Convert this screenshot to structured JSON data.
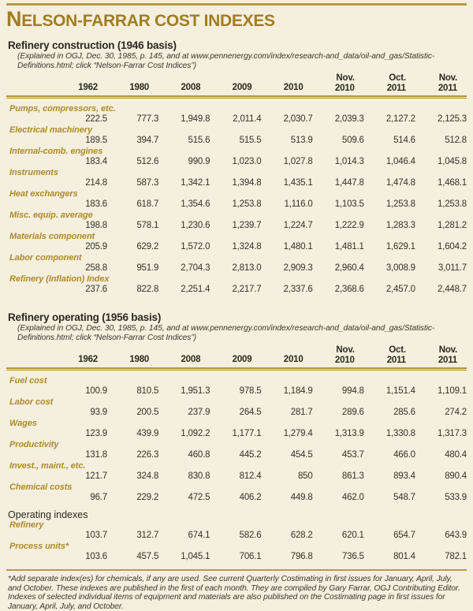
{
  "title": "NELSON-FARRAR COST INDEXES",
  "colors": {
    "background": "#f4efde",
    "accent_gold": "#bd9a43",
    "title_gold": "#a17d1e",
    "label_gold": "#b08a29",
    "text_dark": "#35312a"
  },
  "columns": [
    {
      "line1": "",
      "line2": "1962"
    },
    {
      "line1": "",
      "line2": "1980"
    },
    {
      "line1": "",
      "line2": "2008"
    },
    {
      "line1": "",
      "line2": "2009"
    },
    {
      "line1": "",
      "line2": "2010"
    },
    {
      "line1": "Nov.",
      "line2": "2010"
    },
    {
      "line1": "Oct.",
      "line2": "2011"
    },
    {
      "line1": "Nov.",
      "line2": "2011"
    }
  ],
  "sections": [
    {
      "heading": "Refinery construction (1946 basis)",
      "explanation": [
        "(Explained in OGJ, Dec. 30, 1985, p. 145, and at www.pennenergy.com/index/research-and_data/oil-and_gas/Statistic-",
        "Definitions.html; click “Nelson-Farrar Cost Indices”)"
      ],
      "rows": [
        {
          "label": "Pumps, compressors, etc.",
          "values": [
            "222.5",
            "777.3",
            "1,949.8",
            "2,011.4",
            "2,030.7",
            "2,039.3",
            "2,127.2",
            "2,125.3"
          ]
        },
        {
          "label": "Electrical machinery",
          "values": [
            "189.5",
            "394.7",
            "515.6",
            "515.5",
            "513.9",
            "509.6",
            "514.6",
            "512.8"
          ]
        },
        {
          "label": "Internal-comb. engines",
          "values": [
            "183.4",
            "512.6",
            "990.9",
            "1,023.0",
            "1,027.8",
            "1,014.3",
            "1,046.4",
            "1,045.8"
          ]
        },
        {
          "label": "Instruments",
          "values": [
            "214.8",
            "587.3",
            "1,342.1",
            "1,394.8",
            "1,435.1",
            "1,447.8",
            "1,474.8",
            "1,468.1"
          ]
        },
        {
          "label": "Heat exchangers",
          "values": [
            "183.6",
            "618.7",
            "1,354.6",
            "1,253.8",
            "1,116.0",
            "1,103.5",
            "1,253.8",
            "1,253.8"
          ]
        },
        {
          "label": "Misc. equip. average",
          "values": [
            "198.8",
            "578.1",
            "1,230.6",
            "1,239.7",
            "1,224.7",
            "1,222.9",
            "1,283.3",
            "1,281.2"
          ]
        },
        {
          "label": "Materials component",
          "values": [
            "205.9",
            "629.2",
            "1,572.0",
            "1,324.8",
            "1,480.1",
            "1,481.1",
            "1,629.1",
            "1,604.2"
          ]
        },
        {
          "label": "Labor component",
          "values": [
            "258.8",
            "951.9",
            "2,704.3",
            "2,813.0",
            "2,909.3",
            "2,960.4",
            "3,008.9",
            "3,011.7"
          ]
        },
        {
          "label": "Refinery (Inflation) Index",
          "values": [
            "237.6",
            "822.8",
            "2,251.4",
            "2,217.7",
            "2,337.6",
            "2,368.6",
            "2,457.0",
            "2,448.7"
          ]
        }
      ]
    },
    {
      "heading": "Refinery operating (1956 basis)",
      "explanation": [
        "(Explained in OGJ, Dec. 30, 1985, p. 145, and at www.pennenergy.com/index/research-and_data/oil-and_gas/Statistic-",
        "Definitions.html; click “Nelson-Farrar Cost Indices”)"
      ],
      "rows": [
        {
          "label": "Fuel cost",
          "values": [
            "100.9",
            "810.5",
            "1,951.3",
            "978.5",
            "1,184.9",
            "994.8",
            "1,151.4",
            "1,109.1"
          ]
        },
        {
          "label": "Labor cost",
          "values": [
            "93.9",
            "200.5",
            "237.9",
            "264.5",
            "281.7",
            "289.6",
            "285.6",
            "274.2"
          ]
        },
        {
          "label": "Wages",
          "values": [
            "123.9",
            "439.9",
            "1,092.2",
            "1,177.1",
            "1,279.4",
            "1,313.9",
            "1,330.8",
            "1,317.3"
          ]
        },
        {
          "label": "Productivity",
          "values": [
            "131.8",
            "226.3",
            "460.8",
            "445.2",
            "454.5",
            "453.7",
            "466.0",
            "480.4"
          ]
        },
        {
          "label": "Invest., maint., etc.",
          "values": [
            "121.7",
            "324.8",
            "830.8",
            "812.4",
            "850",
            "861.3",
            "893.4",
            "890.4"
          ]
        },
        {
          "label": "Chemical costs",
          "values": [
            "96.7",
            "229.2",
            "472.5",
            "406.2",
            "449.8",
            "462.0",
            "548.7",
            "533.9"
          ]
        }
      ],
      "subheading": "Operating indexes",
      "subrows": [
        {
          "label": "Refinery",
          "values": [
            "103.7",
            "312.7",
            "674.1",
            "582.6",
            "628.2",
            "620.1",
            "654.7",
            "643.9"
          ]
        },
        {
          "label": "Process units*",
          "values": [
            "103.6",
            "457.5",
            "1,045.1",
            "706.1",
            "796.8",
            "736.5",
            "801.4",
            "782.1"
          ]
        }
      ]
    }
  ],
  "footnote": "*Add separate index(es) for chemicals, if any are used. See current Quarterly Costimating in first issues for January, April, July, and October. These indexes are published in the first of each month. They are compiled by Gary Farrar, OGJ Contributing Editor. Indexes of selected individual items of equipment and materials are also published on the Costimating page in first issues for January, April, July, and October."
}
